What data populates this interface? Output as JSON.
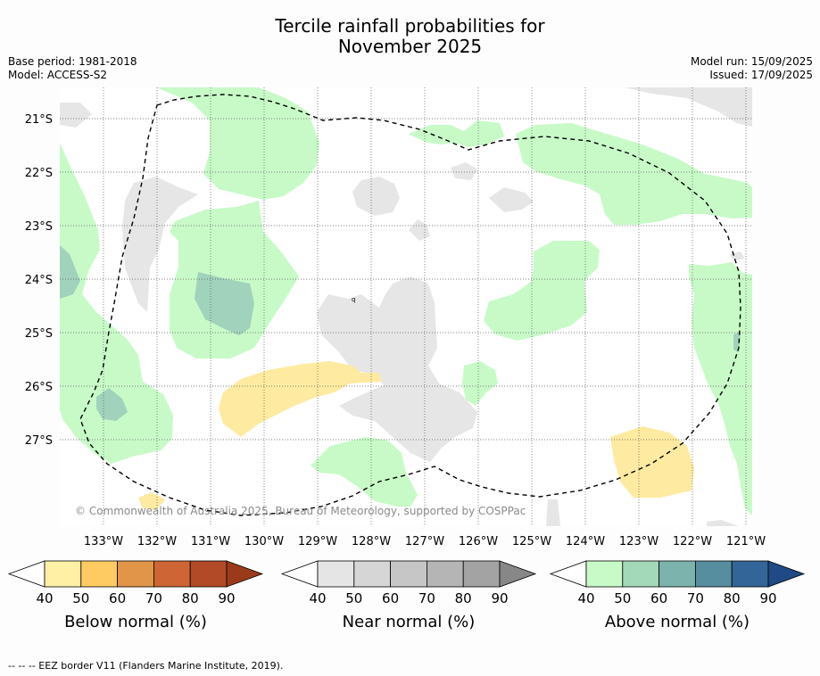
{
  "title_line1": "Tercile rainfall probabilities for",
  "title_line2": "November 2025",
  "meta_left": [
    "Base period: 1981-2018",
    "Model: ACCESS-S2"
  ],
  "meta_right": [
    "Model run: 15/09/2025",
    "Issued: 17/09/2025"
  ],
  "copyright": "© Commonwealth of Australia 2025, Bureau of Meteorology, supported by COSPPac",
  "lat_labels": [
    "21°S",
    "22°S",
    "23°S",
    "24°S",
    "25°S",
    "26°S",
    "27°S"
  ],
  "lon_labels": [
    "133°W",
    "132°W",
    "131°W",
    "130°W",
    "129°W",
    "128°W",
    "127°W",
    "126°W",
    "125°W",
    "124°W",
    "123°W",
    "122°W",
    "121°W"
  ],
  "colorbars": [
    {
      "title": "Below normal (%)",
      "ticks": [
        "40",
        "50",
        "60",
        "70",
        "80",
        "90"
      ],
      "colors": [
        "#fff0a5",
        "#fecb62",
        "#e09548",
        "#cd6634",
        "#b24a27"
      ],
      "arrow": "#9b3a1a"
    },
    {
      "title": "Near normal (%)",
      "ticks": [
        "40",
        "50",
        "60",
        "70",
        "80",
        "90"
      ],
      "colors": [
        "#e5e5e5",
        "#d6d6d6",
        "#c6c6c6",
        "#b5b5b5",
        "#a3a3a3"
      ],
      "arrow": "#878787"
    },
    {
      "title": "Above normal (%)",
      "ticks": [
        "40",
        "50",
        "60",
        "70",
        "80",
        "90"
      ],
      "colors": [
        "#c8fac8",
        "#a3d8b8",
        "#7cb3ad",
        "#578e9f",
        "#336598"
      ],
      "arrow": "#1f4a85"
    }
  ],
  "footer": "--  --  -- EEZ border V11 (Flanders Marine Institute, 2019).",
  "map_colors": {
    "below": "#feeaa0",
    "near": "#e6e6e6",
    "above": "#c8fac8",
    "above60": "#a0d2bc"
  }
}
